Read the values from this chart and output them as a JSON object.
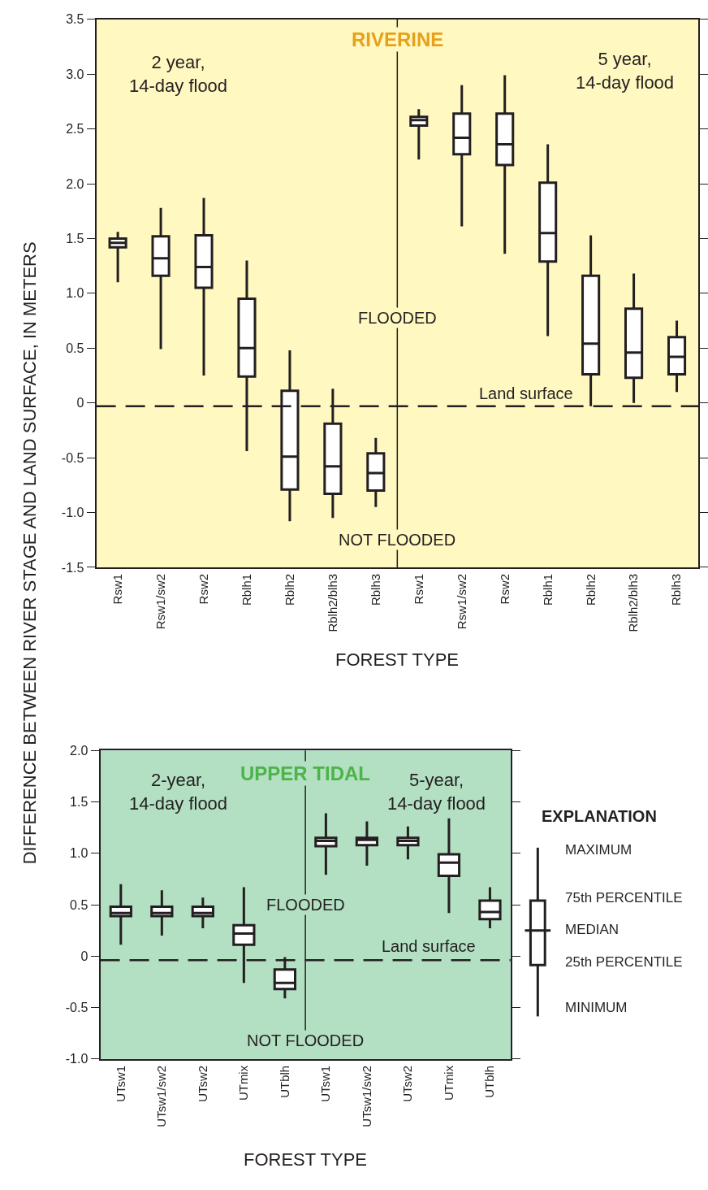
{
  "chart_data": [
    {
      "type": "box",
      "title": "RIVERINE",
      "xlabel": "FOREST TYPE",
      "ylabel": "DIFFERENCE BETWEEN RIVER STAGE AND LAND SURFACE, IN METERS",
      "categories": [
        "Rsw1",
        "Rsw1/sw2",
        "Rsw2",
        "Rblh1",
        "Rblh2",
        "Rblh2/blh3",
        "Rblh3",
        "Rsw1",
        "Rsw1/sw2",
        "Rsw2",
        "Rblh1",
        "Rblh2",
        "Rblh2/blh3",
        "Rblh3"
      ],
      "series": [
        {
          "color": "#231f20",
          "boxes": [
            {
              "low": 1.1,
              "q1": 1.42,
              "median": 1.46,
              "q3": 1.5,
              "high": 1.56
            },
            {
              "low": 0.49,
              "q1": 1.16,
              "median": 1.32,
              "q3": 1.52,
              "high": 1.78
            },
            {
              "low": 0.25,
              "q1": 1.05,
              "median": 1.24,
              "q3": 1.53,
              "high": 1.87
            },
            {
              "low": -0.44,
              "q1": 0.24,
              "median": 0.5,
              "q3": 0.95,
              "high": 1.3
            },
            {
              "low": -1.08,
              "q1": -0.79,
              "median": -0.49,
              "q3": 0.11,
              "high": 0.48
            },
            {
              "low": -1.05,
              "q1": -0.83,
              "median": -0.58,
              "q3": -0.19,
              "high": 0.13
            },
            {
              "low": -0.95,
              "q1": -0.8,
              "median": -0.64,
              "q3": -0.46,
              "high": -0.32
            },
            {
              "low": 2.22,
              "q1": 2.53,
              "median": 2.58,
              "q3": 2.61,
              "high": 2.68
            },
            {
              "low": 1.61,
              "q1": 2.27,
              "median": 2.42,
              "q3": 2.64,
              "high": 2.9
            },
            {
              "low": 1.36,
              "q1": 2.17,
              "median": 2.36,
              "q3": 2.64,
              "high": 2.99
            },
            {
              "low": 0.61,
              "q1": 1.29,
              "median": 1.55,
              "q3": 2.01,
              "high": 2.36
            },
            {
              "low": -0.03,
              "q1": 0.26,
              "median": 0.54,
              "q3": 1.16,
              "high": 1.53
            },
            {
              "low": 0.0,
              "q1": 0.23,
              "median": 0.46,
              "q3": 0.86,
              "high": 1.18
            },
            {
              "low": 0.1,
              "q1": 0.26,
              "median": 0.42,
              "q3": 0.6,
              "high": 0.75
            }
          ]
        }
      ],
      "ylim": [
        -1.5,
        3.5
      ],
      "yticks": [
        {
          "value": -1.5,
          "label": "-1.5"
        },
        {
          "value": -1,
          "label": "-1.0"
        },
        -0.5,
        0,
        0.5,
        {
          "value": 1,
          "label": "1.0"
        },
        1.5,
        {
          "value": 2,
          "label": "2.0"
        },
        2.5,
        {
          "value": 3,
          "label": "3.0"
        },
        3.5
      ],
      "ref_lines": [
        {
          "axis": "y",
          "value": -0.03,
          "label": "Land surface",
          "line_style": "dashed"
        }
      ],
      "annotations": [
        "2 year,\n14-day flood",
        "5 year,\n14-day flood",
        "FLOODED",
        "NOT FLOODED"
      ],
      "grid": false,
      "legend": false
    },
    {
      "type": "box",
      "title": "UPPER TIDAL",
      "xlabel": "FOREST TYPE",
      "categories": [
        "UTsw1",
        "UTsw1/sw2",
        "UTsw2",
        "UTmix",
        "UTblh",
        "UTsw1",
        "UTsw1/sw2",
        "UTsw2",
        "UTmix",
        "UTblh"
      ],
      "series": [
        {
          "color": "#231f20",
          "boxes": [
            {
              "low": 0.11,
              "q1": 0.39,
              "median": 0.42,
              "q3": 0.48,
              "high": 0.7
            },
            {
              "low": 0.2,
              "q1": 0.39,
              "median": 0.42,
              "q3": 0.48,
              "high": 0.64
            },
            {
              "low": 0.27,
              "q1": 0.39,
              "median": 0.42,
              "q3": 0.48,
              "high": 0.57
            },
            {
              "low": -0.26,
              "q1": 0.11,
              "median": 0.22,
              "q3": 0.3,
              "high": 0.67
            },
            {
              "low": -0.41,
              "q1": -0.32,
              "median": -0.26,
              "q3": -0.13,
              "high": -0.01
            },
            {
              "low": 0.79,
              "q1": 1.07,
              "median": 1.12,
              "q3": 1.15,
              "high": 1.39
            },
            {
              "low": 0.88,
              "q1": 1.08,
              "median": 1.13,
              "q3": 1.15,
              "high": 1.31
            },
            {
              "low": 0.94,
              "q1": 1.08,
              "median": 1.12,
              "q3": 1.15,
              "high": 1.26
            },
            {
              "low": 0.42,
              "q1": 0.78,
              "median": 0.91,
              "q3": 0.99,
              "high": 1.34
            },
            {
              "low": 0.27,
              "q1": 0.36,
              "median": 0.43,
              "q3": 0.54,
              "high": 0.67
            }
          ]
        }
      ],
      "ylim": [
        -1,
        2
      ],
      "yticks": [
        {
          "value": -1,
          "label": "-1.0"
        },
        -0.5,
        0,
        0.5,
        {
          "value": 1,
          "label": "1.0"
        },
        1.5,
        {
          "value": 2,
          "label": "2.0"
        }
      ],
      "ref_lines": [
        {
          "axis": "y",
          "value": -0.04,
          "label": "Land surface",
          "line_style": "dashed"
        }
      ],
      "annotations": [
        "2-year,\n14-day flood",
        "5-year,\n14-day flood",
        "FLOODED",
        "NOT FLOODED",
        "EXPLANATION",
        "MAXIMUM",
        "75th PERCENTILE",
        "MEDIAN",
        "25th PERCENTILE",
        "MINIMUM"
      ],
      "grid": false,
      "legend": "right"
    }
  ]
}
